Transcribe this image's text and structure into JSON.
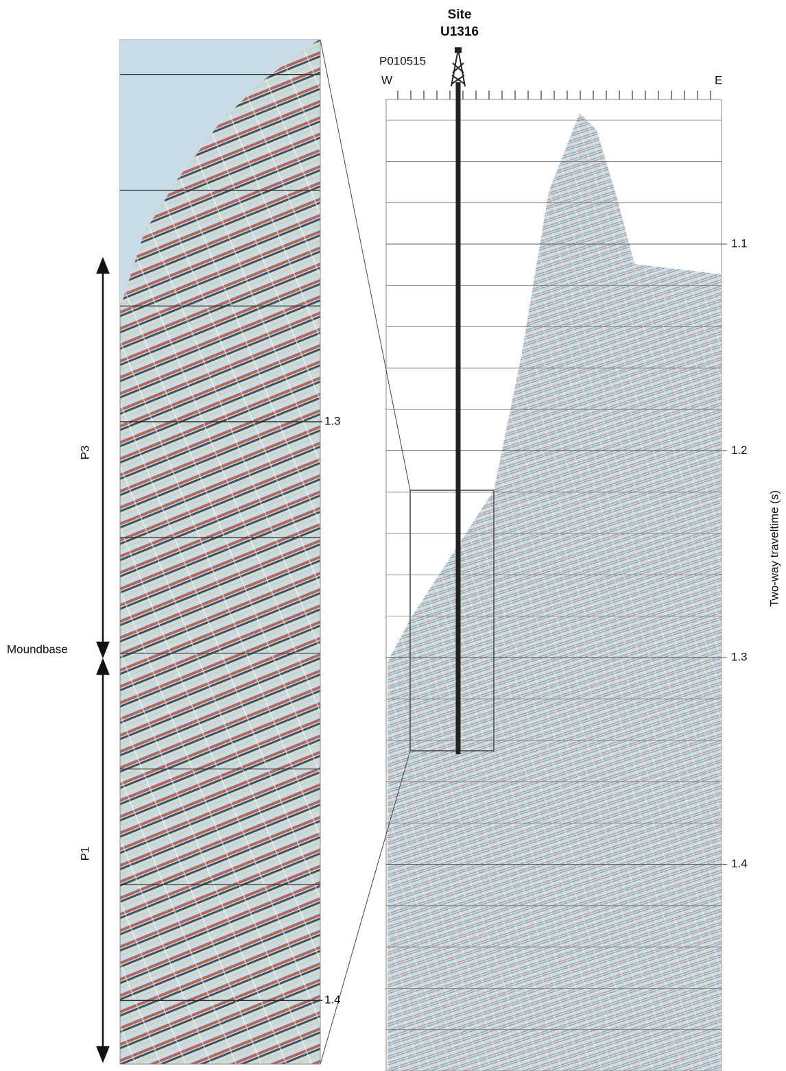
{
  "site": {
    "label": "Site",
    "name": "U1316"
  },
  "profile": {
    "name": "P010515",
    "west": "W",
    "east": "E",
    "axis_label": "Two-way traveltime (s)",
    "ylim": [
      1.03,
      1.5
    ],
    "yticks": [
      1.1,
      1.2,
      1.3,
      1.4
    ]
  },
  "inset": {
    "ylim": [
      1.234,
      1.411
    ],
    "yticks": [
      1.3,
      1.4
    ],
    "units": [
      "P3",
      "P1"
    ],
    "boundary": "Moundbase"
  }
}
